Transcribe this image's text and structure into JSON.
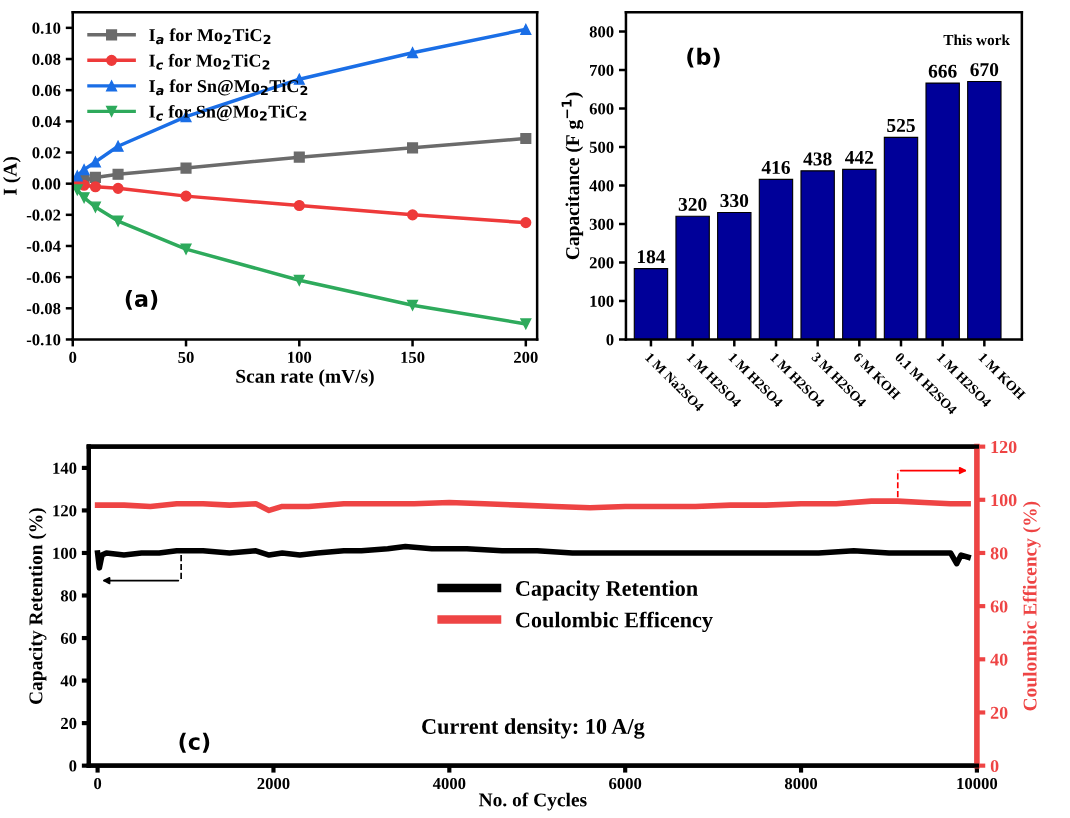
{
  "chart_data": [
    {
      "type": "line",
      "xlabel": "Scan rate (mV/s)",
      "ylabel": "I (A)",
      "xlim": [
        0,
        205
      ],
      "xticks": [
        0,
        50,
        100,
        150,
        200
      ],
      "ylim": [
        -0.1,
        0.11
      ],
      "yticks": [
        {
          "value": -0.1,
          "label": "-0.10"
        },
        {
          "value": -0.08,
          "label": "-0.08"
        },
        {
          "value": -0.06,
          "label": "-0.06"
        },
        {
          "value": -0.04,
          "label": "-0.04"
        },
        {
          "value": -0.02,
          "label": "-0.02"
        },
        {
          "value": 0,
          "label": "0.00"
        },
        {
          "value": 0.02,
          "label": "0.02"
        },
        {
          "value": 0.04,
          "label": "0.04"
        },
        {
          "value": 0.06,
          "label": "0.06"
        },
        {
          "value": 0.08,
          "label": "0.08"
        },
        {
          "value": 0.1,
          "label": "0.10"
        }
      ],
      "x": [
        2,
        5,
        10,
        20,
        50,
        100,
        150,
        200
      ],
      "legend": "top left",
      "grid": false,
      "annotations": [
        "(a)"
      ],
      "series": [
        {
          "name": "I$_{a}$ for Mo$_{2}$TiC$_{2}$",
          "color": "#6b6b6b",
          "marker": "square",
          "values": [
            0.001,
            0.002,
            0.004,
            0.006,
            0.01,
            0.017,
            0.023,
            0.029
          ]
        },
        {
          "name": "I$_{c}$ for Mo$_{2}$TiC$_{2}$",
          "color": "#ee3a3a",
          "marker": "circle",
          "values": [
            0.0,
            -0.001,
            -0.002,
            -0.003,
            -0.008,
            -0.014,
            -0.02,
            -0.025
          ]
        },
        {
          "name": "I$_{a}$ for Sn@Mo$_{2}$TiC$_{2}$",
          "color": "#1a6ee6",
          "marker": "triangle",
          "values": [
            0.005,
            0.009,
            0.014,
            0.024,
            0.043,
            0.067,
            0.084,
            0.099
          ]
        },
        {
          "name": "I$_{c}$ for Sn@Mo$_{2}$TiC$_{2}$",
          "color": "#2eaa5c",
          "marker": "triangle_down",
          "values": [
            -0.004,
            -0.009,
            -0.015,
            -0.024,
            -0.042,
            -0.062,
            -0.078,
            -0.09
          ]
        }
      ]
    },
    {
      "type": "bar",
      "ylabel": "Capacitance (F g$^{−1}$)",
      "ylim": [
        0,
        850
      ],
      "yticks": [
        0,
        100,
        200,
        300,
        400,
        500,
        600,
        700,
        800
      ],
      "categories": [
        "1 M Na2SO4",
        "1 M H2SO4",
        "1 M H2SO4",
        "1 M H2SO4",
        "3 M H2SO4",
        "6 M KOH",
        "0.1 M H2SO4",
        "1 M H2SO4",
        "1 M KOH"
      ],
      "values": [
        184,
        320,
        330,
        416,
        438,
        442,
        525,
        666,
        670
      ],
      "color": "#000099",
      "data_labels": true,
      "grid": false,
      "annotations": [
        "(b)",
        "This work"
      ]
    },
    {
      "type": "line",
      "xlabel": "No. of Cycles",
      "ylabel": "Capacity Retention (%)",
      "y2label": "Coulombic Efficency (%)",
      "xlim": [
        -100,
        10000
      ],
      "xticks": [
        0,
        2000,
        4000,
        6000,
        8000,
        10000
      ],
      "ylim": [
        0,
        150
      ],
      "yticks": [
        0,
        20,
        40,
        60,
        80,
        100,
        120,
        140
      ],
      "y2lim": [
        0,
        120
      ],
      "y2ticks": [
        0,
        20,
        40,
        60,
        80,
        100,
        120
      ],
      "legend": "center",
      "grid": false,
      "annotations": [
        "(c)",
        "Current density: 10 A/g"
      ],
      "series": [
        {
          "name": "Capacity Retention",
          "color": "#000000",
          "x": [
            0,
            20,
            50,
            100,
            300,
            500,
            700,
            900,
            1200,
            1500,
            1800,
            1950,
            2100,
            2300,
            2500,
            2800,
            3000,
            3300,
            3500,
            3800,
            4200,
            4600,
            5000,
            5400,
            5800,
            6200,
            6600,
            7000,
            7400,
            7800,
            8200,
            8600,
            9000,
            9400,
            9700,
            9770,
            9820,
            9900
          ],
          "values": [
            100,
            93,
            99,
            100,
            99,
            100,
            100,
            101,
            101,
            100,
            101,
            99,
            100,
            99,
            100,
            101,
            101,
            102,
            103,
            102,
            102,
            101,
            101,
            100,
            100,
            100,
            100,
            100,
            100,
            100,
            100,
            101,
            100,
            100,
            100,
            95,
            99,
            98
          ]
        },
        {
          "name": "Coulombic Efficency",
          "color": "#ee4444",
          "axis": "y2",
          "x": [
            0,
            300,
            600,
            900,
            1200,
            1500,
            1800,
            1950,
            2100,
            2400,
            2800,
            3200,
            3600,
            4000,
            4400,
            4800,
            5200,
            5600,
            6000,
            6400,
            6800,
            7200,
            7600,
            8000,
            8400,
            8800,
            9100,
            9400,
            9700,
            9900
          ],
          "values": [
            98,
            98,
            97.5,
            98.5,
            98.5,
            98,
            98.5,
            96,
            97.5,
            97.5,
            98.5,
            98.5,
            98.5,
            99,
            98.5,
            98,
            97.5,
            97,
            97.5,
            97.5,
            97.5,
            98,
            98,
            98.5,
            98.5,
            99.5,
            99.5,
            99,
            98.5,
            98.5
          ]
        }
      ]
    }
  ]
}
